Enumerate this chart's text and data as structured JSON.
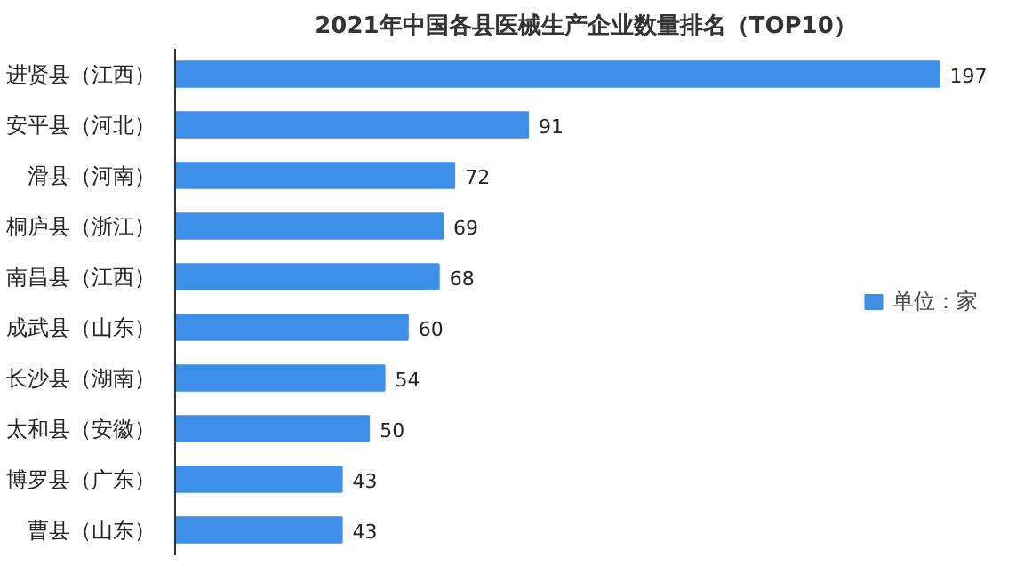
{
  "chart_data": {
    "type": "bar",
    "orientation": "horizontal",
    "title": "2021年中国各县医械生产企业数量排名（TOP10）",
    "categories": [
      "进贤县（江西）",
      "安平县（河北）",
      "滑县（河南）",
      "桐庐县（浙江）",
      "南昌县（江西）",
      "成武县（山东）",
      "长沙县（湖南）",
      "太和县（安徽）",
      "博罗县（广东）",
      "曹县（山东）"
    ],
    "series": [
      {
        "name": "单位：家",
        "color": "#3d8fe8",
        "values": [
          197,
          91,
          72,
          69,
          68,
          60,
          54,
          50,
          43,
          43
        ]
      }
    ],
    "tick_labels": "y",
    "data_labels": true,
    "legend": "right",
    "grid": false
  }
}
